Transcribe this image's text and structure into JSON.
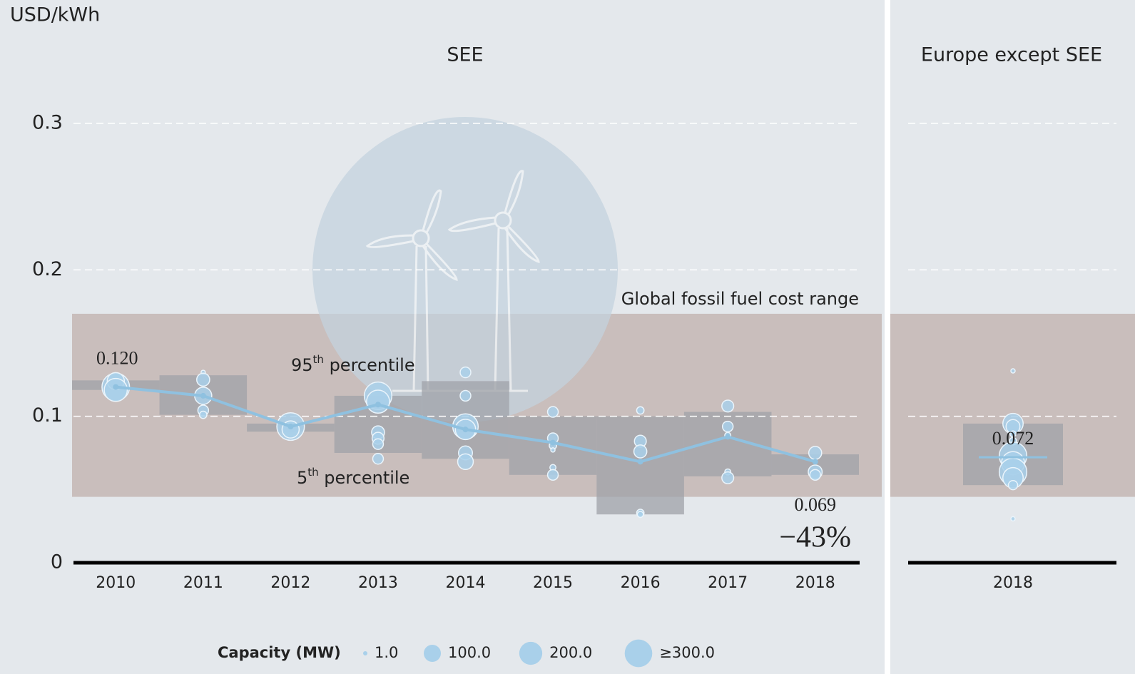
{
  "chart_data": [
    {
      "type": "bubble",
      "title": "SEE",
      "y_label": "USD/kWh",
      "categories": [
        "2010",
        "2011",
        "2012",
        "2013",
        "2014",
        "2015",
        "2016",
        "2017",
        "2018"
      ],
      "ylim": [
        0,
        0.3
      ],
      "yticks": [
        0,
        0.1,
        0.2,
        0.3
      ],
      "grid": true,
      "fossil_range": {
        "label": "Global fossil fuel cost range",
        "low": 0.045,
        "high": 0.17,
        "color": "#c9bebc"
      },
      "p5": [
        0.118,
        0.101,
        0.0895,
        0.075,
        0.071,
        0.06,
        0.033,
        0.059,
        0.06
      ],
      "p95": [
        0.1245,
        0.128,
        0.095,
        0.114,
        0.124,
        0.1,
        0.1,
        0.103,
        0.074
      ],
      "box_color": "#9fa1a8",
      "percentile_labels": {
        "p95": [
          "95",
          "th",
          " percentile"
        ],
        "p5": [
          "5",
          "th",
          " percentile"
        ]
      },
      "weighted_average": {
        "color": "#8fc1e0",
        "values": [
          0.12,
          0.114,
          0.093,
          0.108,
          0.091,
          0.082,
          0.069,
          0.086,
          0.069
        ],
        "value_labels": [
          "0.120",
          null,
          null,
          null,
          null,
          null,
          null,
          null,
          "0.069"
        ]
      },
      "change": {
        "value": -43,
        "label": "−43%"
      },
      "projects": {
        "color": "#a9d0ea",
        "x": [
          2010,
          2010,
          2010,
          2011,
          2011,
          2011,
          2011,
          2011,
          2012,
          2012,
          2013,
          2013,
          2013,
          2013,
          2013,
          2013,
          2014,
          2014,
          2014,
          2014,
          2014,
          2014,
          2015,
          2015,
          2015,
          2015,
          2015,
          2015,
          2016,
          2016,
          2016,
          2016,
          2016,
          2017,
          2017,
          2017,
          2017,
          2017,
          2018,
          2018,
          2018
        ],
        "y": [
          0.12,
          0.124,
          0.118,
          0.13,
          0.125,
          0.114,
          0.104,
          0.101,
          0.093,
          0.091,
          0.114,
          0.11,
          0.089,
          0.085,
          0.081,
          0.071,
          0.13,
          0.114,
          0.093,
          0.091,
          0.075,
          0.069,
          0.103,
          0.085,
          0.08,
          0.077,
          0.065,
          0.06,
          0.104,
          0.083,
          0.076,
          0.034,
          0.033,
          0.107,
          0.093,
          0.087,
          0.062,
          0.058,
          0.075,
          0.062,
          0.06
        ],
        "size": [
          300,
          100,
          200,
          1,
          50,
          100,
          30,
          10,
          300,
          100,
          300,
          200,
          50,
          40,
          30,
          30,
          30,
          30,
          250,
          150,
          60,
          80,
          30,
          30,
          10,
          1,
          5,
          30,
          10,
          40,
          50,
          10,
          5,
          40,
          30,
          5,
          5,
          40,
          50,
          60,
          30
        ]
      },
      "legend": {
        "title": "Capacity (MW)",
        "items": [
          {
            "value": 1,
            "label": "1.0"
          },
          {
            "value": 100,
            "label": "100.0"
          },
          {
            "value": 200,
            "label": "200.0"
          },
          {
            "value": 300,
            "label": "≥300.0"
          }
        ]
      }
    },
    {
      "type": "bubble",
      "title": "Europe except SEE",
      "categories": [
        "2018"
      ],
      "ylim": [
        0,
        0.3
      ],
      "grid": true,
      "fossil_range": {
        "low": 0.045,
        "high": 0.17,
        "color": "#c9bebc"
      },
      "p5": [
        0.053
      ],
      "p95": [
        0.095
      ],
      "box_color": "#9fa1a8",
      "weighted_average": {
        "color": "#8fc1e0",
        "values": [
          0.072
        ],
        "value_labels": [
          "0.072"
        ]
      },
      "projects": {
        "color": "#a9d0ea",
        "x": [
          2018,
          2018,
          2018,
          2018,
          2018,
          2018,
          2018,
          2018,
          2018,
          2018,
          2018
        ],
        "y": [
          0.131,
          0.095,
          0.093,
          0.088,
          0.083,
          0.073,
          0.068,
          0.062,
          0.058,
          0.053,
          0.03
        ],
        "size": [
          1,
          150,
          60,
          5,
          10,
          300,
          200,
          300,
          150,
          20,
          1
        ]
      }
    }
  ]
}
